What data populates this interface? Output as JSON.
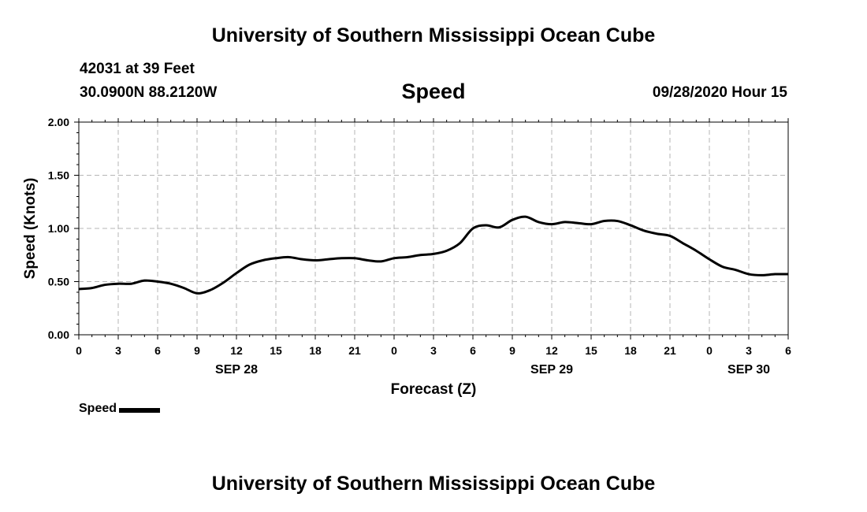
{
  "header": {
    "title": "University of Southern Mississippi Ocean Cube",
    "station": "42031 at 39 Feet",
    "coordinates": "30.0900N 88.2120W",
    "datetime": "09/28/2020 Hour 15"
  },
  "footer": {
    "title": "University of Southern Mississippi Ocean Cube"
  },
  "chart_data": {
    "type": "line",
    "title": "Speed",
    "xlabel": "Forecast (Z)",
    "ylabel": "Speed (Knots)",
    "ylim": [
      0,
      2
    ],
    "yticks": [
      "0.00",
      "0.50",
      "1.00",
      "1.50",
      "2.00"
    ],
    "xlim": [
      0,
      54
    ],
    "xticks": [
      "0",
      "3",
      "6",
      "9",
      "12",
      "15",
      "18",
      "21",
      "0",
      "3",
      "6",
      "9",
      "12",
      "15",
      "18",
      "21",
      "0",
      "3",
      "6"
    ],
    "date_labels": [
      {
        "label": "SEP 28",
        "hour": 12
      },
      {
        "label": "SEP 29",
        "hour": 36
      },
      {
        "label": "SEP 30",
        "hour": 51
      }
    ],
    "grid": true,
    "legend": {
      "position": "bottom-left"
    },
    "series": [
      {
        "name": "Speed",
        "color": "#000000",
        "x": [
          0,
          1,
          2,
          3,
          4,
          5,
          6,
          7,
          8,
          9,
          10,
          11,
          12,
          13,
          14,
          15,
          16,
          17,
          18,
          19,
          20,
          21,
          22,
          23,
          24,
          25,
          26,
          27,
          28,
          29,
          30,
          31,
          32,
          33,
          34,
          35,
          36,
          37,
          38,
          39,
          40,
          41,
          42,
          43,
          44,
          45,
          46,
          47,
          48,
          49,
          50,
          51,
          52,
          53,
          54
        ],
        "values": [
          0.43,
          0.44,
          0.47,
          0.48,
          0.48,
          0.51,
          0.5,
          0.48,
          0.44,
          0.39,
          0.42,
          0.49,
          0.58,
          0.66,
          0.7,
          0.72,
          0.73,
          0.71,
          0.7,
          0.71,
          0.72,
          0.72,
          0.7,
          0.69,
          0.72,
          0.73,
          0.75,
          0.76,
          0.79,
          0.86,
          1.0,
          1.03,
          1.01,
          1.08,
          1.11,
          1.06,
          1.04,
          1.06,
          1.05,
          1.04,
          1.07,
          1.07,
          1.03,
          0.98,
          0.95,
          0.93,
          0.86,
          0.79,
          0.71,
          0.64,
          0.61,
          0.57,
          0.56,
          0.57,
          0.57
        ]
      }
    ]
  }
}
